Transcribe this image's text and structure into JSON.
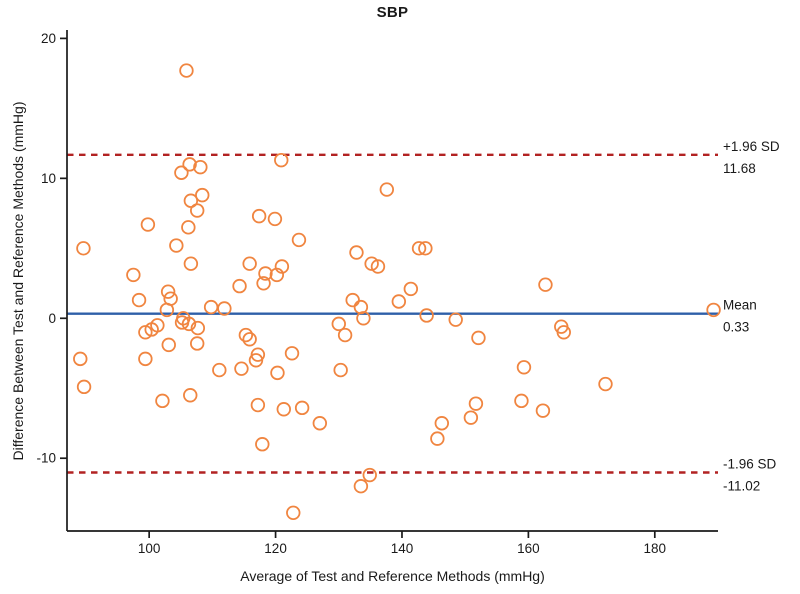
{
  "chart_data": {
    "type": "scatter",
    "title": "SBP",
    "xlabel": "Average of Test and Reference Methods (mmHg)",
    "ylabel": "Difference Between Test and Reference Methods (mmHg)",
    "xlim": [
      87,
      190
    ],
    "ylim": [
      -15.2,
      20.6
    ],
    "x_ticks": [
      100,
      120,
      140,
      160,
      180
    ],
    "y_ticks": [
      20,
      10,
      0,
      -10
    ],
    "grid": false,
    "legend": "none",
    "marker": {
      "shape": "open-circle",
      "color": "#F08540",
      "radius": 6.3,
      "stroke_width": 1.8
    },
    "axis_color": "#1a1a1a",
    "reference_lines": [
      {
        "name": "upper-loa-line",
        "value": 11.68,
        "style": "dashed",
        "color": "#B22222",
        "label_lines": [
          "+1.96 SD",
          "11.68"
        ]
      },
      {
        "name": "mean-line",
        "value": 0.33,
        "style": "solid",
        "color": "#2E5FA8",
        "label_lines": [
          "Mean",
          "0.33"
        ]
      },
      {
        "name": "lower-loa-line",
        "value": -11.02,
        "style": "dashed",
        "color": "#B22222",
        "label_lines": [
          "-1.96 SD",
          "-11.02"
        ]
      }
    ],
    "points": [
      [
        105.9,
        17.7
      ],
      [
        105.1,
        10.4
      ],
      [
        106.4,
        11.0
      ],
      [
        108.1,
        10.8
      ],
      [
        120.9,
        11.3
      ],
      [
        106.6,
        8.4
      ],
      [
        108.4,
        8.8
      ],
      [
        107.6,
        7.7
      ],
      [
        137.6,
        9.2
      ],
      [
        117.4,
        7.3
      ],
      [
        119.9,
        7.1
      ],
      [
        99.8,
        6.7
      ],
      [
        106.2,
        6.5
      ],
      [
        89.6,
        5.0
      ],
      [
        104.3,
        5.2
      ],
      [
        123.7,
        5.6
      ],
      [
        132.8,
        4.7
      ],
      [
        135.2,
        3.9
      ],
      [
        136.2,
        3.7
      ],
      [
        142.7,
        5.0
      ],
      [
        143.7,
        5.0
      ],
      [
        106.6,
        3.9
      ],
      [
        115.9,
        3.9
      ],
      [
        118.4,
        3.2
      ],
      [
        120.2,
        3.1
      ],
      [
        121.0,
        3.7
      ],
      [
        118.1,
        2.5
      ],
      [
        114.3,
        2.3
      ],
      [
        97.5,
        3.1
      ],
      [
        141.4,
        2.1
      ],
      [
        162.7,
        2.4
      ],
      [
        98.4,
        1.3
      ],
      [
        103.0,
        1.9
      ],
      [
        103.4,
        1.4
      ],
      [
        102.8,
        0.6
      ],
      [
        105.4,
        0.0
      ],
      [
        105.2,
        -0.3
      ],
      [
        106.3,
        -0.4
      ],
      [
        107.7,
        -0.7
      ],
      [
        99.4,
        -1.0
      ],
      [
        100.4,
        -0.8
      ],
      [
        101.3,
        -0.5
      ],
      [
        109.8,
        0.8
      ],
      [
        111.9,
        0.7
      ],
      [
        132.2,
        1.3
      ],
      [
        133.5,
        0.8
      ],
      [
        133.9,
        0.0
      ],
      [
        139.5,
        1.2
      ],
      [
        143.9,
        0.2
      ],
      [
        148.5,
        -0.1
      ],
      [
        130.0,
        -0.4
      ],
      [
        131.0,
        -1.2
      ],
      [
        152.1,
        -1.4
      ],
      [
        115.3,
        -1.2
      ],
      [
        115.9,
        -1.5
      ],
      [
        165.2,
        -0.6
      ],
      [
        165.6,
        -1.0
      ],
      [
        189.3,
        0.6
      ],
      [
        103.1,
        -1.9
      ],
      [
        107.6,
        -1.8
      ],
      [
        117.2,
        -2.6
      ],
      [
        122.6,
        -2.5
      ],
      [
        89.1,
        -2.9
      ],
      [
        99.4,
        -2.9
      ],
      [
        89.7,
        -4.9
      ],
      [
        102.1,
        -5.9
      ],
      [
        106.5,
        -5.5
      ],
      [
        111.1,
        -3.7
      ],
      [
        114.6,
        -3.6
      ],
      [
        116.9,
        -3.0
      ],
      [
        120.3,
        -3.9
      ],
      [
        117.2,
        -6.2
      ],
      [
        121.3,
        -6.5
      ],
      [
        124.2,
        -6.4
      ],
      [
        127.0,
        -7.5
      ],
      [
        130.3,
        -3.7
      ],
      [
        146.3,
        -7.5
      ],
      [
        145.6,
        -8.6
      ],
      [
        150.9,
        -7.1
      ],
      [
        151.7,
        -6.1
      ],
      [
        159.3,
        -3.5
      ],
      [
        158.9,
        -5.9
      ],
      [
        162.3,
        -6.6
      ],
      [
        172.2,
        -4.7
      ],
      [
        117.9,
        -9.0
      ],
      [
        134.9,
        -11.2
      ],
      [
        133.5,
        -12.0
      ],
      [
        122.8,
        -13.9
      ]
    ]
  }
}
